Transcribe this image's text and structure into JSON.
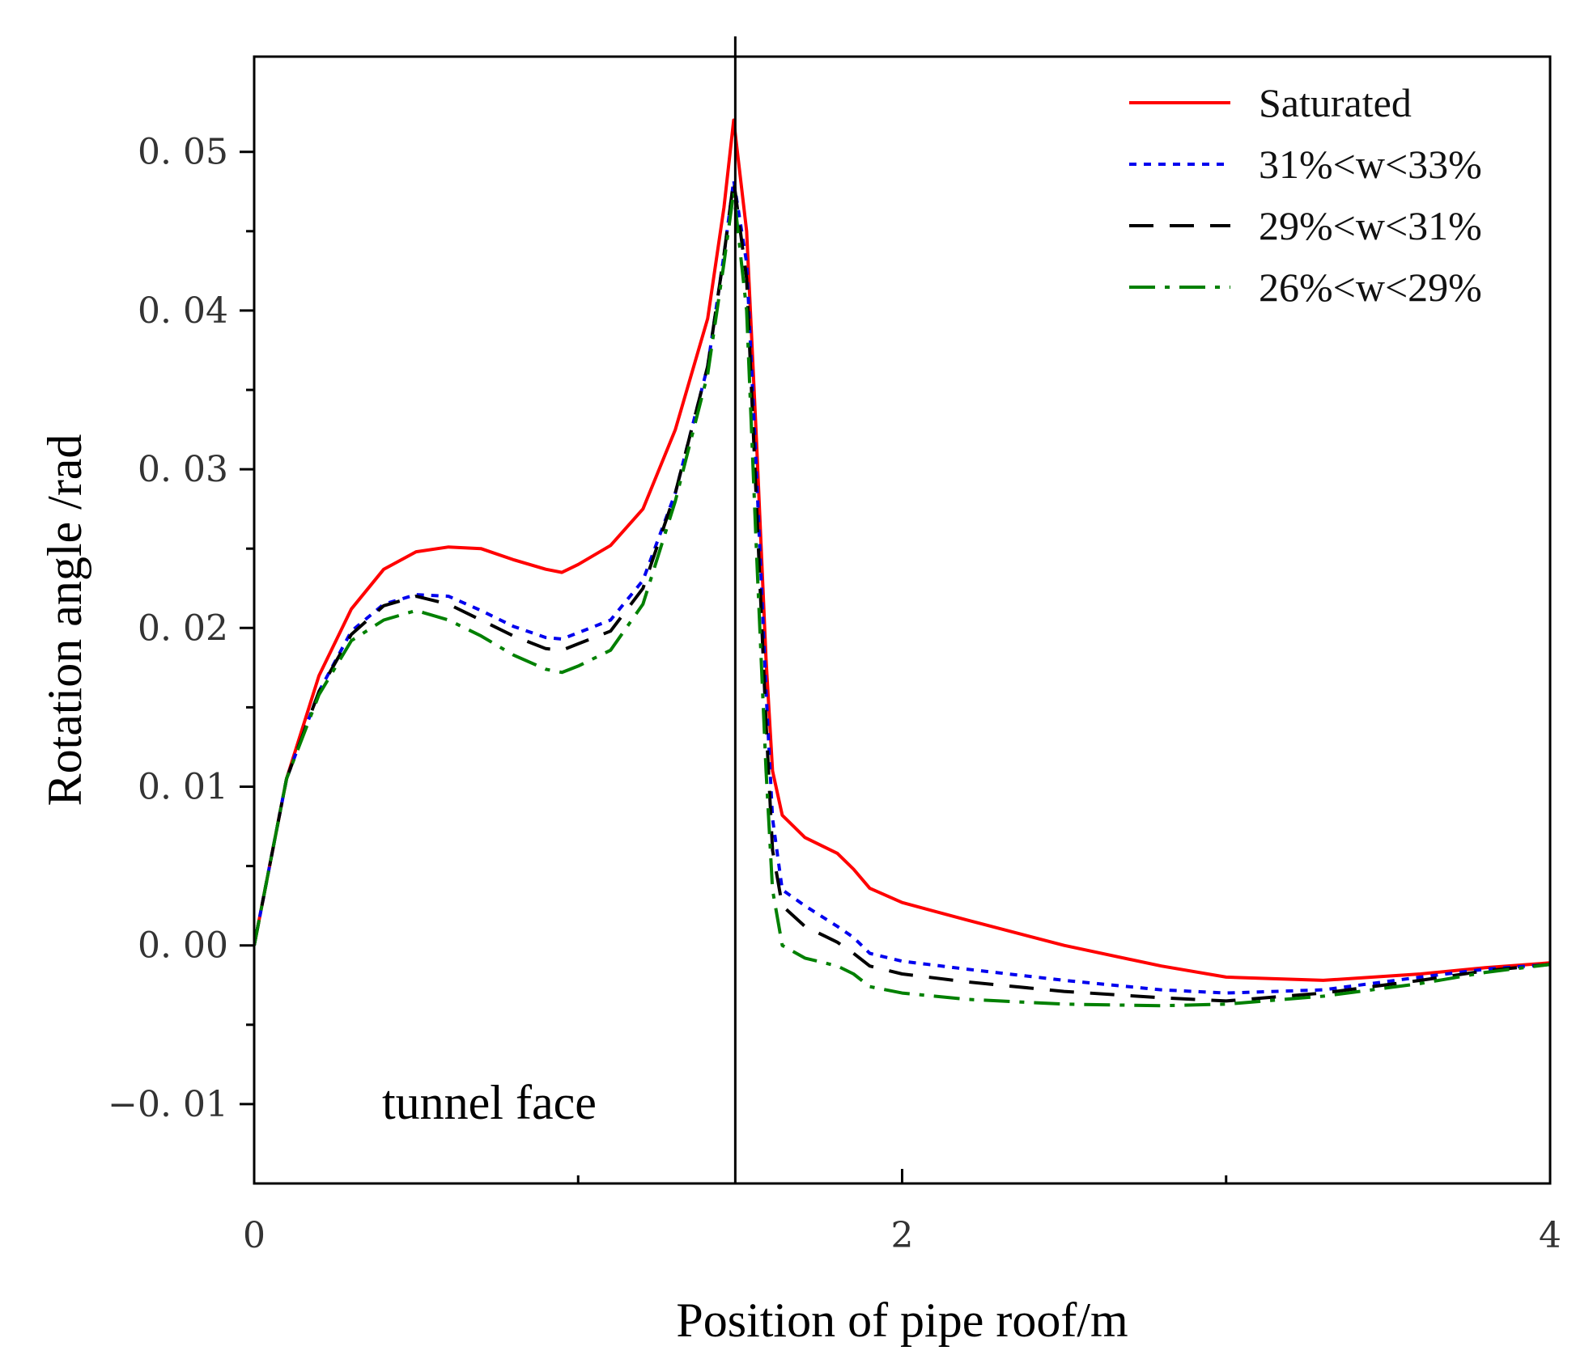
{
  "chart_data": {
    "type": "line",
    "title": "",
    "xlabel": "Position of pipe roof/m",
    "ylabel": "Rotation angle /rad",
    "xlim": [
      0,
      4
    ],
    "ylim": [
      -0.015,
      0.056
    ],
    "x_ticks": [
      0,
      2,
      4
    ],
    "x_tick_labels": [
      "0",
      "2",
      "4"
    ],
    "x_minor_ticks": [
      1,
      3
    ],
    "y_ticks": [
      -0.01,
      0.0,
      0.01,
      0.02,
      0.03,
      0.04,
      0.05
    ],
    "y_tick_labels": [
      "−0. 01",
      "0. 00",
      "0. 01",
      "0. 02",
      "0. 03",
      "0. 04",
      "0. 05"
    ],
    "y_minor_ticks": [
      -0.005,
      0.005,
      0.015,
      0.025,
      0.035,
      0.045
    ],
    "grid": false,
    "legend_position": "top-right",
    "annotations": [
      {
        "text": "tunnel face",
        "x": 0.85,
        "y": -0.01
      }
    ],
    "reference_lines": [
      {
        "axis": "x",
        "value": 1.485,
        "color": "#000000"
      }
    ],
    "series": [
      {
        "name": "Saturated",
        "color": "#ff0000",
        "dash": "solid",
        "points": [
          [
            0,
            0
          ],
          [
            0.1,
            0.0105
          ],
          [
            0.2,
            0.017
          ],
          [
            0.3,
            0.0212
          ],
          [
            0.4,
            0.0237
          ],
          [
            0.5,
            0.0248
          ],
          [
            0.6,
            0.0251
          ],
          [
            0.7,
            0.025
          ],
          [
            0.8,
            0.0243
          ],
          [
            0.9,
            0.0237
          ],
          [
            0.95,
            0.0235
          ],
          [
            1.0,
            0.024
          ],
          [
            1.1,
            0.0252
          ],
          [
            1.2,
            0.0275
          ],
          [
            1.3,
            0.0325
          ],
          [
            1.4,
            0.0395
          ],
          [
            1.45,
            0.0465
          ],
          [
            1.48,
            0.052
          ],
          [
            1.52,
            0.045
          ],
          [
            1.55,
            0.032
          ],
          [
            1.58,
            0.018
          ],
          [
            1.6,
            0.011
          ],
          [
            1.63,
            0.0082
          ],
          [
            1.7,
            0.0068
          ],
          [
            1.8,
            0.0058
          ],
          [
            1.85,
            0.0048
          ],
          [
            1.9,
            0.0036
          ],
          [
            2.0,
            0.0027
          ],
          [
            2.2,
            0.0016
          ],
          [
            2.5,
            0.0
          ],
          [
            2.8,
            -0.0013
          ],
          [
            3.0,
            -0.002
          ],
          [
            3.3,
            -0.0022
          ],
          [
            3.6,
            -0.0018
          ],
          [
            3.8,
            -0.0014
          ],
          [
            4.0,
            -0.0011
          ]
        ]
      },
      {
        "name": "31%<w<33%",
        "color": "#0000ee",
        "dash": "dotted",
        "points": [
          [
            0,
            0
          ],
          [
            0.1,
            0.0105
          ],
          [
            0.2,
            0.016
          ],
          [
            0.3,
            0.0198
          ],
          [
            0.4,
            0.0215
          ],
          [
            0.5,
            0.0221
          ],
          [
            0.6,
            0.022
          ],
          [
            0.7,
            0.0211
          ],
          [
            0.8,
            0.0201
          ],
          [
            0.9,
            0.0194
          ],
          [
            0.95,
            0.0193
          ],
          [
            1.0,
            0.0197
          ],
          [
            1.1,
            0.0205
          ],
          [
            1.2,
            0.023
          ],
          [
            1.3,
            0.0285
          ],
          [
            1.4,
            0.0365
          ],
          [
            1.45,
            0.0435
          ],
          [
            1.48,
            0.0482
          ],
          [
            1.52,
            0.043
          ],
          [
            1.55,
            0.03
          ],
          [
            1.58,
            0.016
          ],
          [
            1.6,
            0.008
          ],
          [
            1.63,
            0.0035
          ],
          [
            1.7,
            0.0025
          ],
          [
            1.8,
            0.0012
          ],
          [
            1.85,
            0.0005
          ],
          [
            1.9,
            -0.0005
          ],
          [
            2.0,
            -0.001
          ],
          [
            2.2,
            -0.0015
          ],
          [
            2.5,
            -0.0022
          ],
          [
            2.8,
            -0.0028
          ],
          [
            3.0,
            -0.003
          ],
          [
            3.3,
            -0.0028
          ],
          [
            3.6,
            -0.002
          ],
          [
            3.8,
            -0.0015
          ],
          [
            4.0,
            -0.0012
          ]
        ]
      },
      {
        "name": "29%<w<31%",
        "color": "#000000",
        "dash": "dashed",
        "points": [
          [
            0,
            0
          ],
          [
            0.1,
            0.0105
          ],
          [
            0.2,
            0.016
          ],
          [
            0.3,
            0.0196
          ],
          [
            0.4,
            0.0214
          ],
          [
            0.5,
            0.022
          ],
          [
            0.6,
            0.0215
          ],
          [
            0.7,
            0.0205
          ],
          [
            0.8,
            0.0195
          ],
          [
            0.9,
            0.0187
          ],
          [
            0.95,
            0.0186
          ],
          [
            1.0,
            0.019
          ],
          [
            1.1,
            0.0198
          ],
          [
            1.2,
            0.0225
          ],
          [
            1.3,
            0.0285
          ],
          [
            1.4,
            0.0365
          ],
          [
            1.45,
            0.0435
          ],
          [
            1.48,
            0.0482
          ],
          [
            1.52,
            0.042
          ],
          [
            1.55,
            0.028
          ],
          [
            1.58,
            0.014
          ],
          [
            1.6,
            0.006
          ],
          [
            1.63,
            0.0025
          ],
          [
            1.7,
            0.0012
          ],
          [
            1.8,
            0.0002
          ],
          [
            1.85,
            -0.0005
          ],
          [
            1.9,
            -0.0013
          ],
          [
            2.0,
            -0.0018
          ],
          [
            2.2,
            -0.0023
          ],
          [
            2.5,
            -0.0029
          ],
          [
            2.8,
            -0.0033
          ],
          [
            3.0,
            -0.0035
          ],
          [
            3.3,
            -0.003
          ],
          [
            3.6,
            -0.0022
          ],
          [
            3.8,
            -0.0016
          ],
          [
            4.0,
            -0.0012
          ]
        ]
      },
      {
        "name": "26%<w<29%",
        "color": "#008000",
        "dash": "dashdot",
        "points": [
          [
            0,
            0
          ],
          [
            0.1,
            0.0105
          ],
          [
            0.2,
            0.0158
          ],
          [
            0.3,
            0.0192
          ],
          [
            0.4,
            0.0205
          ],
          [
            0.5,
            0.0211
          ],
          [
            0.6,
            0.0205
          ],
          [
            0.7,
            0.0195
          ],
          [
            0.8,
            0.0183
          ],
          [
            0.9,
            0.0174
          ],
          [
            0.95,
            0.0172
          ],
          [
            1.0,
            0.0176
          ],
          [
            1.1,
            0.0186
          ],
          [
            1.2,
            0.0215
          ],
          [
            1.3,
            0.028
          ],
          [
            1.4,
            0.036
          ],
          [
            1.45,
            0.043
          ],
          [
            1.48,
            0.0475
          ],
          [
            1.52,
            0.04
          ],
          [
            1.55,
            0.025
          ],
          [
            1.58,
            0.011
          ],
          [
            1.6,
            0.0035
          ],
          [
            1.63,
            0.0
          ],
          [
            1.7,
            -0.0008
          ],
          [
            1.8,
            -0.0013
          ],
          [
            1.85,
            -0.0018
          ],
          [
            1.9,
            -0.0026
          ],
          [
            2.0,
            -0.003
          ],
          [
            2.2,
            -0.0034
          ],
          [
            2.5,
            -0.0037
          ],
          [
            2.8,
            -0.0038
          ],
          [
            3.0,
            -0.0037
          ],
          [
            3.3,
            -0.0032
          ],
          [
            3.6,
            -0.0024
          ],
          [
            3.8,
            -0.0017
          ],
          [
            4.0,
            -0.0012
          ]
        ]
      }
    ]
  }
}
